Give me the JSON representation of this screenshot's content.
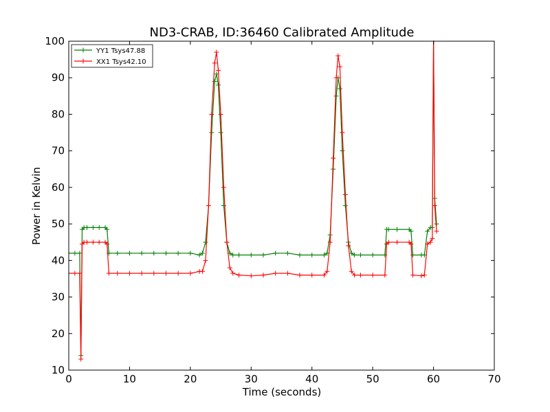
{
  "chart_data": {
    "type": "line",
    "title": "ND3-CRAB, ID:36460 Calibrated Amplitude",
    "xlabel": "Time (seconds)",
    "ylabel": "Power in Kelvin",
    "xlim": [
      0,
      70
    ],
    "ylim": [
      10,
      100
    ],
    "xticks": [
      "0",
      "10",
      "20",
      "30",
      "40",
      "50",
      "60",
      "70"
    ],
    "yticks": [
      "10",
      "20",
      "30",
      "40",
      "50",
      "60",
      "70",
      "80",
      "90",
      "100"
    ],
    "grid": false,
    "legend_position": "top-left",
    "marker": "+",
    "series": [
      {
        "name": "YY1 Tsys47.88",
        "color": "#008000",
        "x": [
          0,
          1,
          1.8,
          2.0,
          2.2,
          2.5,
          3,
          4,
          5,
          6,
          6.3,
          6.6,
          8,
          10,
          12,
          14,
          16,
          18,
          20,
          21.5,
          22,
          22.5,
          23,
          23.5,
          24,
          24.3,
          24.6,
          25,
          25.5,
          26,
          26.5,
          27,
          28,
          30,
          32,
          34,
          36,
          38,
          40,
          42,
          42.5,
          43,
          43.5,
          44,
          44.3,
          44.6,
          45,
          45.5,
          46,
          46.5,
          47,
          48,
          50,
          52,
          52.3,
          52.6,
          54,
          56,
          56.3,
          56.6,
          58,
          58.5,
          59,
          59.5,
          59.8,
          60.0,
          60.2,
          60.5
        ],
        "values": [
          42,
          42,
          42,
          14,
          48.5,
          49,
          49,
          49,
          49,
          49,
          48.5,
          42,
          42,
          42,
          42,
          42,
          42,
          42,
          42,
          41.5,
          42,
          45,
          55,
          75,
          89,
          91,
          88,
          75,
          55,
          45,
          42,
          41.5,
          41.5,
          41.5,
          41.5,
          42,
          42,
          41.5,
          41.5,
          41.5,
          42,
          47,
          65,
          85,
          90,
          87,
          70,
          55,
          45,
          42,
          41.5,
          41.5,
          41.5,
          41.5,
          48.5,
          48.5,
          48.5,
          48.5,
          48,
          41.5,
          41.5,
          41.5,
          48,
          49,
          49,
          100,
          57,
          50
        ]
      },
      {
        "name": "XX1 Tsys42.10",
        "color": "#ff0000",
        "x": [
          0,
          1,
          1.8,
          2.0,
          2.2,
          2.5,
          3,
          4,
          5,
          6,
          6.3,
          6.6,
          8,
          10,
          12,
          14,
          16,
          18,
          20,
          21.5,
          22,
          22.5,
          23,
          23.5,
          24,
          24.3,
          24.6,
          25,
          25.5,
          26,
          26.5,
          27,
          28,
          30,
          32,
          34,
          36,
          38,
          40,
          42,
          42.5,
          43,
          43.5,
          44,
          44.3,
          44.6,
          45,
          45.5,
          46,
          46.5,
          47,
          48,
          50,
          52,
          52.3,
          52.6,
          54,
          56,
          56.3,
          56.6,
          58,
          58.5,
          59,
          59.5,
          59.8,
          60.0,
          60.2,
          60.5
        ],
        "values": [
          36.5,
          36.5,
          36.5,
          13,
          44.5,
          45,
          45,
          45,
          45,
          45,
          44.5,
          36.5,
          36.5,
          36.5,
          36.5,
          36.5,
          36.5,
          36.5,
          36.5,
          37,
          37,
          40,
          55,
          80,
          94,
          97,
          92,
          80,
          60,
          45,
          38,
          36.5,
          36,
          35.8,
          36,
          36.5,
          36.5,
          36,
          36,
          36,
          37,
          45,
          68,
          90,
          96,
          93,
          75,
          58,
          44,
          37,
          36,
          36,
          36,
          36,
          44.5,
          45,
          45,
          45,
          44.5,
          36,
          35.8,
          36,
          44.5,
          45,
          46,
          100,
          55,
          48
        ]
      }
    ]
  }
}
